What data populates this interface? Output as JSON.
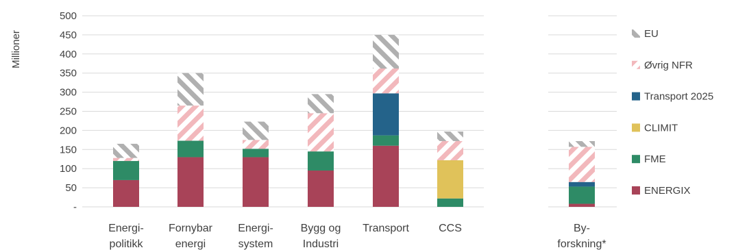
{
  "chart_data": {
    "type": "bar",
    "stacked": true,
    "ylabel": "Millioner",
    "ylim": [
      0,
      500
    ],
    "yticks": [
      "-",
      "50",
      "100",
      "150",
      "200",
      "250",
      "300",
      "350",
      "400",
      "450",
      "500"
    ],
    "grid": true,
    "legend_position": "right",
    "categories": [
      [
        "Energi-",
        "politikk"
      ],
      [
        "Fornybar",
        "energi"
      ],
      [
        "Energi-",
        "system"
      ],
      [
        "Bygg og",
        "Industri"
      ],
      [
        "Transport"
      ],
      [
        "CCS"
      ],
      [
        "By-",
        "forskning*"
      ]
    ],
    "series": [
      {
        "name": "ENERGIX",
        "color": "#A84358",
        "pattern": "solid",
        "values": [
          70,
          130,
          130,
          95,
          160,
          0,
          8
        ]
      },
      {
        "name": "FME",
        "color": "#2E8B66",
        "pattern": "solid",
        "values": [
          50,
          43,
          22,
          50,
          27,
          22,
          45
        ]
      },
      {
        "name": "CLIMIT",
        "color": "#E0C25A",
        "pattern": "solid",
        "values": [
          0,
          0,
          0,
          0,
          0,
          100,
          0
        ]
      },
      {
        "name": "Transport 2025",
        "color": "#24638A",
        "pattern": "solid",
        "values": [
          0,
          0,
          0,
          0,
          110,
          0,
          12
        ]
      },
      {
        "name": "Øvrig NFR",
        "color": "#F2B8BC",
        "pattern": "hatch",
        "values": [
          8,
          92,
          23,
          100,
          65,
          50,
          92
        ]
      },
      {
        "name": "EU",
        "color": "#B0B0B0",
        "pattern": "hatch",
        "values": [
          37,
          85,
          48,
          50,
          88,
          25,
          15
        ]
      }
    ]
  }
}
